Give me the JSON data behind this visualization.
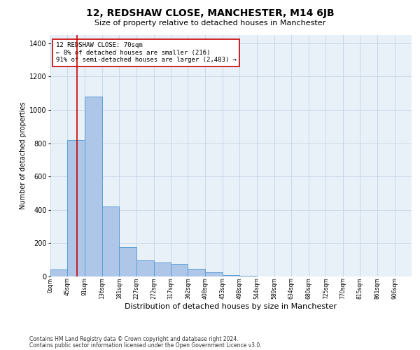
{
  "title": "12, REDSHAW CLOSE, MANCHESTER, M14 6JB",
  "subtitle": "Size of property relative to detached houses in Manchester",
  "xlabel": "Distribution of detached houses by size in Manchester",
  "ylabel": "Number of detached properties",
  "footnote1": "Contains HM Land Registry data © Crown copyright and database right 2024.",
  "footnote2": "Contains public sector information licensed under the Open Government Licence v3.0.",
  "bar_color": "#aec6e8",
  "bar_edge_color": "#5a9fd4",
  "grid_color": "#c8d8e8",
  "background_color": "#e8f0f8",
  "annotation_box_color": "#cc0000",
  "redline_color": "#cc0000",
  "property_size": 70,
  "bin_width": 45,
  "bin_starts": [
    0,
    45,
    91,
    136,
    181,
    227,
    272,
    317,
    362,
    408,
    453,
    498,
    544,
    589,
    634,
    680,
    725,
    770,
    815,
    861
  ],
  "bin_labels": [
    "0sqm",
    "45sqm",
    "91sqm",
    "136sqm",
    "181sqm",
    "227sqm",
    "272sqm",
    "317sqm",
    "362sqm",
    "408sqm",
    "453sqm",
    "498sqm",
    "544sqm",
    "589sqm",
    "634sqm",
    "680sqm",
    "725sqm",
    "770sqm",
    "815sqm",
    "861sqm",
    "906sqm"
  ],
  "bar_heights": [
    40,
    820,
    1080,
    420,
    175,
    95,
    85,
    75,
    45,
    25,
    10,
    4,
    2,
    1,
    0,
    0,
    0,
    0,
    0,
    0
  ],
  "ylim": [
    0,
    1450
  ],
  "yticks": [
    0,
    200,
    400,
    600,
    800,
    1000,
    1200,
    1400
  ],
  "annotation_text": "12 REDSHAW CLOSE: 70sqm\n← 8% of detached houses are smaller (216)\n91% of semi-detached houses are larger (2,483) →",
  "title_fontsize": 10,
  "subtitle_fontsize": 8,
  "ylabel_fontsize": 7,
  "xlabel_fontsize": 8,
  "ytick_fontsize": 7,
  "xtick_fontsize": 5.5,
  "annotation_fontsize": 6.5,
  "footnote_fontsize": 5.5
}
